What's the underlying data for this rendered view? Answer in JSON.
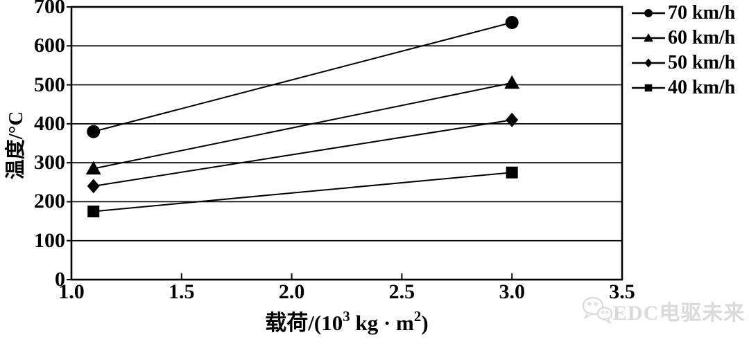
{
  "chart_data": {
    "type": "line",
    "title": "",
    "x": [
      1.1,
      3.0
    ],
    "series": [
      {
        "name": "70 km/h",
        "marker": "circle",
        "values": [
          380,
          660
        ]
      },
      {
        "name": "60 km/h",
        "marker": "triangle",
        "values": [
          285,
          505
        ]
      },
      {
        "name": "50 km/h",
        "marker": "diamond",
        "values": [
          240,
          410
        ]
      },
      {
        "name": "40 km/h",
        "marker": "square",
        "values": [
          175,
          275
        ]
      }
    ],
    "xlabel": "载荷/(10^3 kg·m^2)",
    "xlabel_parts": {
      "pre": "载荷/(10",
      "sup1": "3",
      "mid": " kg · m",
      "sup2": "2",
      "post": ")"
    },
    "ylabel": "温度/°C",
    "xlim": [
      1.0,
      3.5
    ],
    "ylim": [
      0,
      700
    ],
    "xticks": [
      "1.0",
      "1.5",
      "2.0",
      "2.5",
      "3.0",
      "3.5"
    ],
    "yticks": [
      0,
      100,
      200,
      300,
      400,
      500,
      600,
      700
    ],
    "grid": "horizontal",
    "legend_position": "top-right-outside",
    "line_color": "#000000",
    "background": "#ffffff"
  },
  "watermark": {
    "icon": "wechat-icon",
    "text": "EDC电驱未来",
    "color": "#dadada"
  }
}
